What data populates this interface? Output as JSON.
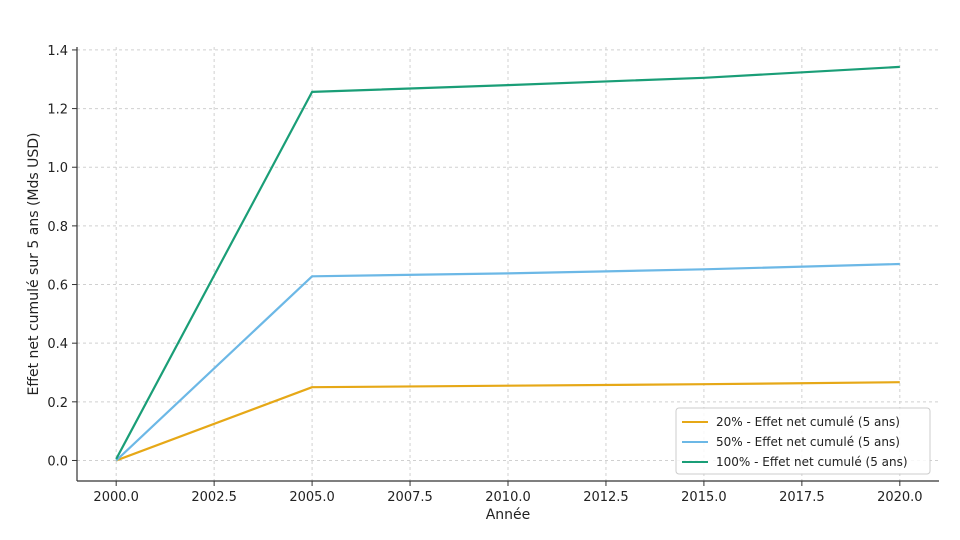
{
  "chart_data": {
    "type": "line",
    "title": "",
    "xlabel": "Année",
    "ylabel": "Effet net cumulé sur 5 ans (Mds USD)",
    "x": [
      2000,
      2005,
      2010,
      2015,
      2020
    ],
    "xlim": [
      1999,
      2021
    ],
    "ylim": [
      -0.07,
      1.41
    ],
    "xticks": [
      2000.0,
      2002.5,
      2005.0,
      2007.5,
      2010.0,
      2012.5,
      2015.0,
      2017.5,
      2020.0
    ],
    "xtick_labels": [
      "2000.0",
      "2002.5",
      "2005.0",
      "2007.5",
      "2010.0",
      "2012.5",
      "2015.0",
      "2017.5",
      "2020.0"
    ],
    "yticks": [
      0.0,
      0.2,
      0.4,
      0.6,
      0.8,
      1.0,
      1.2,
      1.4
    ],
    "ytick_labels": [
      "0.0",
      "0.2",
      "0.4",
      "0.6",
      "0.8",
      "1.0",
      "1.2",
      "1.4"
    ],
    "grid": true,
    "legend_position": "bottom-right",
    "series": [
      {
        "name": "20% - Effet net cumulé (5 ans)",
        "color": "#E6A817",
        "values": [
          0.0,
          0.25,
          0.255,
          0.26,
          0.267
        ]
      },
      {
        "name": "50% - Effet net cumulé (5 ans)",
        "color": "#6CB8E6",
        "values": [
          0.0,
          0.628,
          0.638,
          0.652,
          0.67
        ]
      },
      {
        "name": "100% - Effet net cumulé (5 ans)",
        "color": "#1A9E77",
        "values": [
          0.005,
          1.257,
          1.28,
          1.305,
          1.342
        ]
      }
    ]
  }
}
